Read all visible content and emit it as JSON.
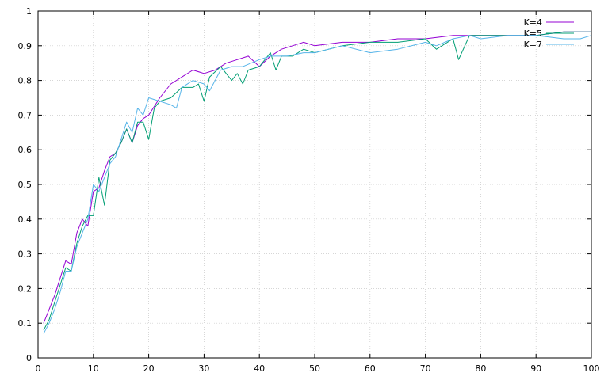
{
  "chart_data": {
    "type": "line",
    "title": "",
    "xlabel": "",
    "ylabel": "",
    "xlim": [
      0,
      100
    ],
    "ylim": [
      0,
      1
    ],
    "xticks": [
      0,
      10,
      20,
      30,
      40,
      50,
      60,
      70,
      80,
      90,
      100
    ],
    "yticks": [
      0,
      0.1,
      0.2,
      0.3,
      0.4,
      0.5,
      0.6,
      0.7,
      0.8,
      0.9,
      1
    ],
    "grid": true,
    "legend_position": "top-right",
    "series": [
      {
        "name": "K=4",
        "color": "#9400d3",
        "x": [
          1,
          2,
          3,
          4,
          5,
          6,
          7,
          8,
          9,
          10,
          11,
          12,
          13,
          14,
          15,
          16,
          17,
          18,
          19,
          20,
          22,
          24,
          26,
          28,
          30,
          32,
          34,
          36,
          38,
          40,
          42,
          44,
          46,
          48,
          50,
          55,
          60,
          65,
          70,
          75,
          80,
          85,
          90,
          95,
          100
        ],
        "y": [
          0.1,
          0.14,
          0.18,
          0.23,
          0.28,
          0.27,
          0.36,
          0.4,
          0.38,
          0.48,
          0.49,
          0.54,
          0.58,
          0.59,
          0.62,
          0.66,
          0.62,
          0.67,
          0.69,
          0.7,
          0.75,
          0.79,
          0.81,
          0.83,
          0.82,
          0.83,
          0.85,
          0.86,
          0.87,
          0.84,
          0.87,
          0.89,
          0.9,
          0.91,
          0.9,
          0.91,
          0.91,
          0.92,
          0.92,
          0.93,
          0.93,
          0.93,
          0.93,
          0.94,
          0.94
        ]
      },
      {
        "name": "K=5",
        "color": "#009e73",
        "x": [
          1,
          2,
          3,
          4,
          5,
          6,
          7,
          8,
          9,
          10,
          11,
          12,
          13,
          14,
          15,
          16,
          17,
          18,
          19,
          20,
          21,
          22,
          24,
          26,
          28,
          29,
          30,
          31,
          33,
          35,
          36,
          37,
          38,
          40,
          42,
          43,
          44,
          46,
          48,
          50,
          55,
          60,
          65,
          70,
          72,
          75,
          76,
          78,
          80,
          85,
          90,
          95,
          100
        ],
        "y": [
          0.08,
          0.11,
          0.16,
          0.21,
          0.26,
          0.25,
          0.33,
          0.38,
          0.41,
          0.41,
          0.52,
          0.44,
          0.57,
          0.59,
          0.62,
          0.66,
          0.62,
          0.68,
          0.68,
          0.63,
          0.72,
          0.74,
          0.75,
          0.78,
          0.78,
          0.79,
          0.74,
          0.81,
          0.84,
          0.8,
          0.82,
          0.79,
          0.83,
          0.84,
          0.88,
          0.83,
          0.87,
          0.87,
          0.89,
          0.88,
          0.9,
          0.91,
          0.91,
          0.92,
          0.89,
          0.92,
          0.86,
          0.93,
          0.93,
          0.93,
          0.93,
          0.94,
          0.94
        ]
      },
      {
        "name": "K=7",
        "color": "#56b4e9",
        "x": [
          1,
          2,
          3,
          4,
          5,
          6,
          7,
          8,
          9,
          10,
          11,
          12,
          13,
          14,
          15,
          16,
          17,
          18,
          19,
          20,
          22,
          24,
          25,
          26,
          28,
          30,
          31,
          33,
          35,
          37,
          40,
          42,
          45,
          48,
          50,
          55,
          60,
          65,
          70,
          72,
          75,
          78,
          80,
          85,
          90,
          95,
          98,
          100
        ],
        "y": [
          0.07,
          0.1,
          0.14,
          0.19,
          0.25,
          0.25,
          0.32,
          0.36,
          0.4,
          0.5,
          0.48,
          0.52,
          0.56,
          0.58,
          0.63,
          0.68,
          0.65,
          0.72,
          0.7,
          0.75,
          0.74,
          0.73,
          0.72,
          0.78,
          0.8,
          0.79,
          0.77,
          0.83,
          0.84,
          0.84,
          0.86,
          0.87,
          0.87,
          0.88,
          0.88,
          0.9,
          0.88,
          0.89,
          0.91,
          0.9,
          0.92,
          0.93,
          0.92,
          0.93,
          0.93,
          0.92,
          0.92,
          0.93
        ]
      }
    ]
  }
}
